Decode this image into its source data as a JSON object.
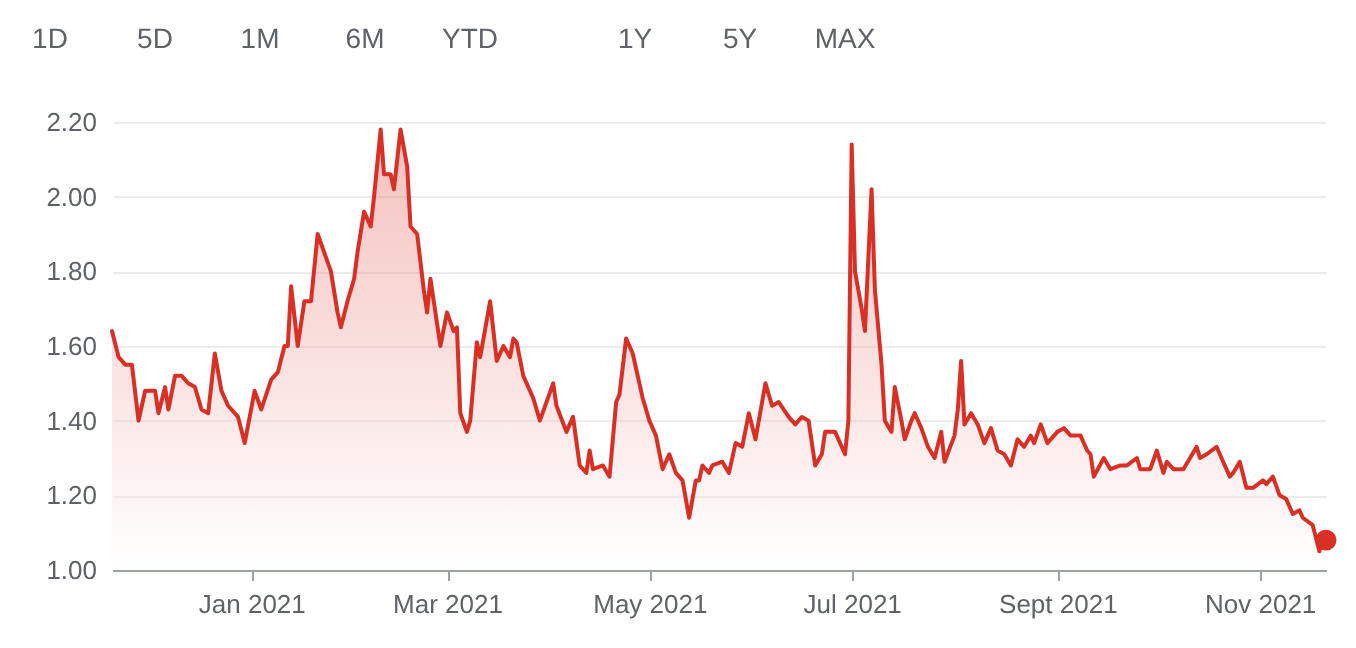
{
  "chart_data": {
    "type": "area",
    "annotations": [
      "1D",
      "5D",
      "1M",
      "6M",
      "YTD",
      "1Y",
      "5Y",
      "MAX"
    ],
    "xlim": [
      "2020-11-20",
      "2021-11-21"
    ],
    "xticks": [
      {
        "value": "2021-01-01",
        "label": "Jan 2021"
      },
      {
        "value": "2021-03-01",
        "label": "Mar 2021"
      },
      {
        "value": "2021-05-01",
        "label": "May 2021"
      },
      {
        "value": "2021-07-01",
        "label": "Jul 2021"
      },
      {
        "value": "2021-09-01",
        "label": "Sept 2021"
      },
      {
        "value": "2021-11-01",
        "label": "Nov 2021"
      }
    ],
    "ylim": [
      1.0,
      2.2
    ],
    "yticks": [
      {
        "value": 1.0,
        "label": "1.00"
      },
      {
        "value": 1.2,
        "label": "1.20"
      },
      {
        "value": 1.4,
        "label": "1.40"
      },
      {
        "value": 1.6,
        "label": "1.60"
      },
      {
        "value": 1.8,
        "label": "1.80"
      },
      {
        "value": 2.0,
        "label": "2.00"
      },
      {
        "value": 2.2,
        "label": "2.20"
      }
    ],
    "grid": "y",
    "series": [
      {
        "type": "area",
        "color": "#d93025",
        "x": [
          "2020-11-20",
          "2020-11-22",
          "2020-11-24",
          "2020-11-26",
          "2020-11-28",
          "2020-11-30",
          "2020-12-03",
          "2020-12-04",
          "2020-12-06",
          "2020-12-07",
          "2020-12-09",
          "2020-12-11",
          "2020-12-13",
          "2020-12-15",
          "2020-12-17",
          "2020-12-19",
          "2020-12-21",
          "2020-12-23",
          "2020-12-25",
          "2020-12-28",
          "2020-12-30",
          "2021-01-02",
          "2021-01-04",
          "2021-01-07",
          "2021-01-09",
          "2021-01-11",
          "2021-01-12",
          "2021-01-13",
          "2021-01-15",
          "2021-01-17",
          "2021-01-19",
          "2021-01-21",
          "2021-01-23",
          "2021-01-25",
          "2021-01-27",
          "2021-01-28",
          "2021-01-30",
          "2021-02-01",
          "2021-02-02",
          "2021-02-04",
          "2021-02-06",
          "2021-02-07",
          "2021-02-09",
          "2021-02-10",
          "2021-02-12",
          "2021-02-13",
          "2021-02-15",
          "2021-02-17",
          "2021-02-18",
          "2021-02-20",
          "2021-02-22",
          "2021-02-23",
          "2021-02-24",
          "2021-02-26",
          "2021-02-27",
          "2021-03-01",
          "2021-03-03",
          "2021-03-04",
          "2021-03-05",
          "2021-03-07",
          "2021-03-08",
          "2021-03-10",
          "2021-03-11",
          "2021-03-14",
          "2021-03-16",
          "2021-03-18",
          "2021-03-20",
          "2021-03-21",
          "2021-03-22",
          "2021-03-24",
          "2021-03-26",
          "2021-03-27",
          "2021-03-29",
          "2021-04-02",
          "2021-04-03",
          "2021-04-06",
          "2021-04-08",
          "2021-04-10",
          "2021-04-12",
          "2021-04-13",
          "2021-04-14",
          "2021-04-17",
          "2021-04-19",
          "2021-04-21",
          "2021-04-22",
          "2021-04-24",
          "2021-04-26",
          "2021-04-28",
          "2021-04-29",
          "2021-05-01",
          "2021-05-03",
          "2021-05-05",
          "2021-05-07",
          "2021-05-09",
          "2021-05-11",
          "2021-05-13",
          "2021-05-15",
          "2021-05-16",
          "2021-05-17",
          "2021-05-19",
          "2021-05-20",
          "2021-05-23",
          "2021-05-25",
          "2021-05-27",
          "2021-05-29",
          "2021-05-31",
          "2021-06-02",
          "2021-06-05",
          "2021-06-07",
          "2021-06-09",
          "2021-06-12",
          "2021-06-14",
          "2021-06-16",
          "2021-06-18",
          "2021-06-20",
          "2021-06-22",
          "2021-06-23",
          "2021-06-26",
          "2021-06-29",
          "2021-06-30",
          "2021-07-01",
          "2021-07-02",
          "2021-07-04",
          "2021-07-05",
          "2021-07-07",
          "2021-07-08",
          "2021-07-10",
          "2021-07-11",
          "2021-07-13",
          "2021-07-14",
          "2021-07-16",
          "2021-07-17",
          "2021-07-19",
          "2021-07-20",
          "2021-07-22",
          "2021-07-24",
          "2021-07-26",
          "2021-07-28",
          "2021-07-29",
          "2021-08-01",
          "2021-08-02",
          "2021-08-03",
          "2021-08-04",
          "2021-08-06",
          "2021-08-08",
          "2021-08-10",
          "2021-08-12",
          "2021-08-14",
          "2021-08-16",
          "2021-08-18",
          "2021-08-20",
          "2021-08-22",
          "2021-08-24",
          "2021-08-25",
          "2021-08-27",
          "2021-08-29",
          "2021-09-01",
          "2021-09-03",
          "2021-09-05",
          "2021-09-08",
          "2021-09-10",
          "2021-09-11",
          "2021-09-12",
          "2021-09-15",
          "2021-09-17",
          "2021-09-20",
          "2021-09-22",
          "2021-09-25",
          "2021-09-26",
          "2021-09-29",
          "2021-10-01",
          "2021-10-03",
          "2021-10-04",
          "2021-10-06",
          "2021-10-09",
          "2021-10-11",
          "2021-10-13",
          "2021-10-14",
          "2021-10-16",
          "2021-10-19",
          "2021-10-21",
          "2021-10-23",
          "2021-10-24",
          "2021-10-26",
          "2021-10-28",
          "2021-10-30",
          "2021-11-02",
          "2021-11-03",
          "2021-11-05",
          "2021-11-07",
          "2021-11-09",
          "2021-11-11",
          "2021-11-13",
          "2021-11-14",
          "2021-11-17",
          "2021-11-19",
          "2021-11-20",
          "2021-11-21"
        ],
        "values": [
          1.64,
          1.57,
          1.55,
          1.55,
          1.4,
          1.48,
          1.48,
          1.42,
          1.49,
          1.43,
          1.52,
          1.52,
          1.5,
          1.49,
          1.43,
          1.42,
          1.58,
          1.48,
          1.44,
          1.41,
          1.34,
          1.48,
          1.43,
          1.51,
          1.53,
          1.6,
          1.6,
          1.76,
          1.6,
          1.72,
          1.72,
          1.9,
          1.85,
          1.8,
          1.69,
          1.65,
          1.72,
          1.78,
          1.85,
          1.96,
          1.92,
          2.0,
          2.18,
          2.06,
          2.06,
          2.02,
          2.18,
          2.08,
          1.92,
          1.9,
          1.75,
          1.69,
          1.78,
          1.66,
          1.6,
          1.69,
          1.64,
          1.65,
          1.42,
          1.37,
          1.4,
          1.61,
          1.57,
          1.72,
          1.56,
          1.6,
          1.57,
          1.62,
          1.61,
          1.52,
          1.48,
          1.46,
          1.4,
          1.5,
          1.44,
          1.37,
          1.41,
          1.28,
          1.26,
          1.32,
          1.27,
          1.28,
          1.25,
          1.45,
          1.47,
          1.62,
          1.58,
          1.5,
          1.46,
          1.4,
          1.36,
          1.27,
          1.31,
          1.26,
          1.24,
          1.14,
          1.24,
          1.24,
          1.28,
          1.26,
          1.28,
          1.29,
          1.26,
          1.34,
          1.33,
          1.42,
          1.35,
          1.5,
          1.44,
          1.45,
          1.41,
          1.39,
          1.41,
          1.4,
          1.28,
          1.31,
          1.37,
          1.37,
          1.31,
          1.4,
          2.14,
          1.8,
          1.7,
          1.64,
          2.02,
          1.75,
          1.55,
          1.4,
          1.37,
          1.49,
          1.4,
          1.35,
          1.4,
          1.42,
          1.38,
          1.33,
          1.3,
          1.37,
          1.29,
          1.36,
          1.43,
          1.56,
          1.39,
          1.42,
          1.39,
          1.34,
          1.38,
          1.32,
          1.31,
          1.28,
          1.35,
          1.33,
          1.36,
          1.34,
          1.39,
          1.34,
          1.37,
          1.38,
          1.36,
          1.36,
          1.32,
          1.31,
          1.25,
          1.3,
          1.27,
          1.28,
          1.28,
          1.3,
          1.27,
          1.27,
          1.32,
          1.26,
          1.29,
          1.27,
          1.27,
          1.3,
          1.33,
          1.3,
          1.31,
          1.33,
          1.29,
          1.25,
          1.26,
          1.29,
          1.22,
          1.22,
          1.24,
          1.23,
          1.25,
          1.2,
          1.19,
          1.15,
          1.16,
          1.14,
          1.12,
          1.05,
          1.09,
          1.08
        ]
      },
      {
        "type": "scatter",
        "color": "#d93025",
        "marker": "circle",
        "x": [
          "2021-11-21"
        ],
        "values": [
          1.08
        ]
      }
    ]
  }
}
